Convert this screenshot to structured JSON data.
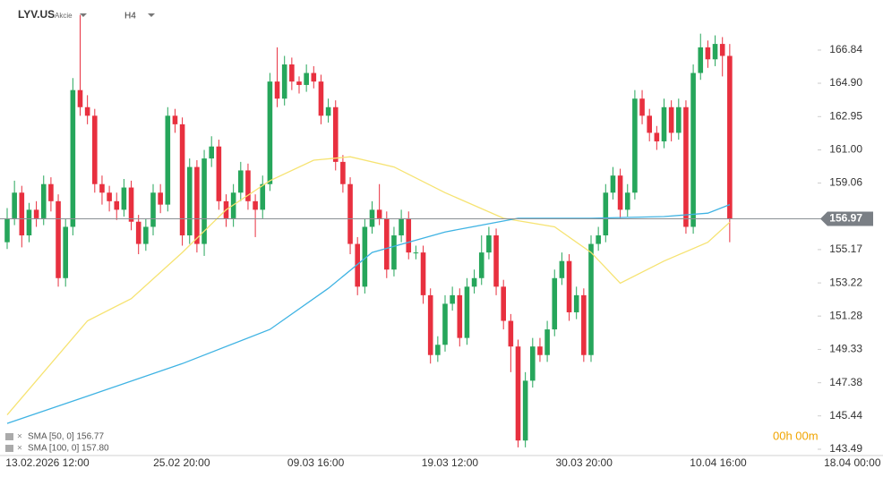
{
  "chart_data": {
    "type": "candlestick",
    "symbol": "LYV.US",
    "asset_class": "Akcie",
    "timeframe": "H4",
    "timer": "00h 00m",
    "open": [
      155.6,
      157.0,
      158.5,
      156.0,
      157.5,
      157.0,
      159.0,
      158.0,
      153.5,
      156.5,
      164.5,
      163.5,
      163.0,
      159.0,
      158.5,
      158.0,
      157.5,
      158.8,
      156.8,
      155.5,
      156.5,
      158.5,
      157.8,
      163.0,
      162.5,
      156.0,
      160.0,
      155.5,
      160.5,
      161.2,
      158.0,
      157.0,
      158.5,
      159.8,
      158.0,
      157.5,
      159.0,
      165.0,
      164.0,
      166.0,
      165.0,
      164.8,
      165.5,
      165.0,
      163.0,
      163.5,
      160.3,
      159.0,
      155.5,
      153.0,
      156.5,
      157.5,
      157.0,
      154.0,
      156.0,
      157.0,
      155.0,
      155.0,
      152.5,
      149.0,
      149.6,
      152.0,
      152.5,
      150.0,
      153.0,
      153.5,
      155.0,
      156.0,
      153.0,
      151.0,
      149.5,
      144.0,
      147.5,
      149.5,
      149.0,
      150.5,
      153.5,
      154.5,
      151.5,
      152.5,
      149.0,
      155.5,
      156.0,
      158.5,
      159.5,
      157.5,
      158.5,
      164.0,
      163.0,
      162.0,
      161.5,
      163.5,
      162.0,
      163.5,
      156.5,
      165.5,
      167.0,
      166.3,
      167.2,
      166.5
    ],
    "high": [
      157.6,
      159.2,
      158.9,
      157.9,
      158.0,
      159.5,
      159.4,
      158.4,
      157.0,
      165.2,
      168.9,
      164.2,
      163.4,
      159.5,
      158.9,
      158.5,
      159.3,
      159.2,
      157.2,
      157.0,
      159.0,
      159.0,
      163.5,
      163.4,
      162.9,
      160.5,
      160.4,
      161.0,
      161.8,
      161.6,
      158.4,
      159.0,
      160.3,
      160.2,
      158.4,
      159.5,
      165.5,
      167.0,
      166.5,
      166.4,
      165.3,
      166.0,
      165.9,
      165.4,
      164.0,
      163.9,
      160.7,
      159.4,
      155.9,
      157.0,
      158.0,
      159.0,
      157.4,
      156.5,
      157.5,
      157.4,
      155.4,
      155.4,
      152.9,
      150.1,
      152.5,
      153.0,
      152.9,
      153.5,
      154.0,
      156.0,
      156.5,
      156.4,
      153.4,
      151.4,
      149.9,
      148.0,
      150.0,
      150.0,
      151.0,
      154.0,
      155.0,
      154.9,
      153.0,
      152.9,
      156.0,
      156.5,
      159.0,
      160.0,
      159.9,
      159.0,
      164.5,
      164.5,
      163.4,
      162.4,
      164.0,
      163.9,
      164.0,
      163.9,
      166.0,
      167.8,
      167.4,
      167.7,
      167.6,
      167.2
    ],
    "low": [
      155.2,
      156.6,
      155.3,
      155.6,
      156.5,
      156.6,
      157.4,
      153.0,
      153.0,
      156.0,
      163.0,
      162.5,
      158.5,
      157.8,
      157.4,
      156.9,
      157.1,
      156.3,
      154.9,
      155.1,
      156.0,
      157.3,
      157.4,
      162.0,
      155.4,
      155.5,
      155.0,
      154.8,
      160.0,
      157.5,
      156.5,
      156.5,
      158.0,
      157.5,
      155.9,
      157.0,
      158.6,
      163.5,
      163.6,
      164.5,
      164.3,
      164.4,
      164.6,
      162.5,
      162.6,
      159.8,
      158.5,
      154.9,
      152.5,
      152.6,
      156.1,
      156.6,
      153.5,
      153.6,
      155.6,
      154.6,
      154.6,
      152.0,
      148.5,
      148.6,
      149.2,
      151.6,
      149.5,
      149.6,
      152.6,
      153.1,
      154.6,
      152.5,
      150.5,
      148.0,
      143.6,
      143.6,
      147.1,
      148.6,
      148.6,
      150.1,
      153.1,
      151.0,
      151.1,
      148.6,
      148.6,
      155.1,
      155.6,
      158.1,
      157.0,
      157.1,
      158.1,
      162.5,
      161.5,
      161.0,
      161.1,
      161.5,
      161.6,
      156.1,
      156.1,
      165.1,
      165.8,
      165.9,
      165.3,
      155.6
    ],
    "close": [
      157.0,
      158.5,
      156.0,
      157.5,
      157.0,
      159.0,
      158.0,
      153.5,
      156.5,
      164.5,
      163.5,
      163.0,
      159.0,
      158.5,
      158.0,
      157.5,
      158.8,
      156.8,
      155.5,
      156.5,
      158.5,
      157.8,
      163.0,
      162.5,
      156.0,
      160.0,
      155.5,
      160.5,
      161.2,
      158.0,
      157.0,
      158.5,
      159.8,
      158.0,
      157.5,
      159.0,
      165.0,
      164.0,
      166.0,
      165.0,
      164.8,
      165.5,
      165.0,
      163.0,
      163.5,
      160.3,
      159.0,
      155.5,
      153.0,
      156.5,
      157.5,
      157.0,
      154.0,
      156.0,
      157.0,
      155.0,
      155.0,
      152.5,
      149.0,
      149.6,
      152.0,
      152.5,
      150.0,
      153.0,
      153.5,
      155.0,
      156.0,
      153.0,
      151.0,
      149.5,
      144.0,
      147.5,
      149.5,
      149.0,
      150.5,
      153.5,
      154.5,
      151.5,
      152.5,
      149.0,
      155.5,
      156.0,
      158.5,
      159.5,
      157.5,
      158.5,
      164.0,
      163.0,
      162.0,
      161.5,
      163.5,
      162.0,
      163.5,
      156.5,
      165.5,
      167.0,
      166.3,
      167.2,
      166.5,
      156.97
    ],
    "up_color": "#26a65b",
    "down_color": "#e8303f",
    "series": [
      {
        "name": "SMA [50, 0] 156.77",
        "color": "#f6e372",
        "x": [
          0,
          11,
          17,
          24,
          30,
          36,
          42,
          47,
          53,
          60,
          68,
          75,
          80,
          84,
          90,
          96,
          99
        ],
        "values": [
          145.5,
          151.0,
          152.3,
          155.0,
          157.5,
          159.2,
          160.4,
          160.6,
          160.0,
          158.5,
          157.0,
          156.5,
          155.0,
          153.2,
          154.5,
          155.6,
          156.77
        ]
      },
      {
        "name": "SMA [100, 0] 157.80",
        "color": "#3fb3e3",
        "x": [
          0,
          11,
          24,
          36,
          44,
          50,
          60,
          70,
          80,
          90,
          96,
          99
        ],
        "values": [
          145.0,
          146.6,
          148.5,
          150.5,
          152.9,
          155.0,
          156.2,
          157.0,
          157.0,
          157.1,
          157.3,
          157.8
        ]
      }
    ],
    "last_price": 156.97,
    "ylim": [
      143.07,
      169.77
    ],
    "yticks": [
      143.49,
      145.44,
      147.38,
      149.33,
      151.28,
      153.22,
      155.17,
      159.06,
      {
        "value": 161,
        "label": "161.00"
      },
      162.95,
      {
        "value": 164.9,
        "label": "164.90"
      },
      166.84
    ],
    "xtick_labels": [
      "13.02.2026 12:00",
      "25.02 20:00",
      "09.03 16:00",
      "19.03 12:00",
      "30.03 20:00",
      "10.04 16:00",
      "18.04 00:00"
    ]
  }
}
